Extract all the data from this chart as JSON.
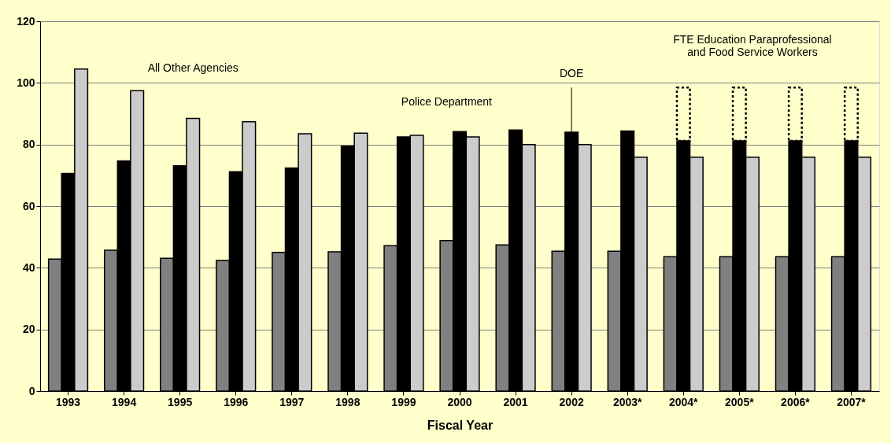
{
  "chart_data": {
    "type": "bar",
    "xlabel": "Fiscal Year",
    "categories": [
      "1993",
      "1994",
      "1995",
      "1996",
      "1997",
      "1998",
      "1999",
      "2000",
      "2001",
      "2002",
      "2003*",
      "2004*",
      "2005*",
      "2006*",
      "2007*"
    ],
    "series": [
      {
        "color": "#808080",
        "values": [
          42.8,
          45.7,
          43.1,
          42.4,
          45.0,
          45.2,
          47.2,
          48.8,
          47.4,
          45.4,
          45.4,
          43.6,
          43.6,
          43.6,
          43.6
        ]
      },
      {
        "color": "#000000",
        "values": [
          70.6,
          74.7,
          73.1,
          71.2,
          72.4,
          79.5,
          82.5,
          84.2,
          84.7,
          84.0,
          84.4,
          81.2,
          81.2,
          81.2,
          81.2
        ]
      },
      {
        "color": "#000000",
        "line_style": "dotted",
        "base": [
          null,
          null,
          null,
          null,
          null,
          null,
          null,
          null,
          null,
          null,
          null,
          81.2,
          81.2,
          81.2,
          81.2
        ],
        "values": [
          null,
          null,
          null,
          null,
          null,
          null,
          null,
          null,
          null,
          null,
          null,
          17.3,
          17.3,
          17.3,
          17.3
        ]
      },
      {
        "color": "#cccccc",
        "values": [
          104.5,
          97.5,
          88.5,
          87.4,
          83.5,
          83.7,
          83.0,
          82.5,
          80.0,
          80.0,
          75.9,
          75.9,
          75.9,
          75.9,
          75.9
        ]
      }
    ],
    "ylim": [
      0,
      120
    ],
    "yticks": [
      0,
      20,
      40,
      60,
      80,
      100,
      120
    ],
    "grid": "y",
    "annotations": [
      "All Other Agencies",
      "Police Department",
      {
        "text": "DOE",
        "x": "2002",
        "y": 84.0
      },
      "FTE Education Paraprofessional\nand Food Service Workers"
    ]
  }
}
